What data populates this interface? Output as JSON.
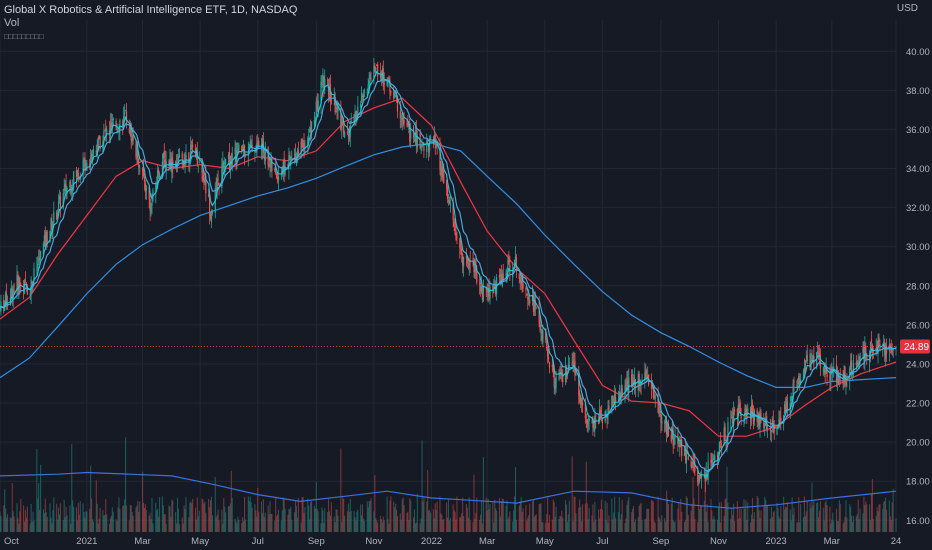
{
  "header": {
    "title": "Global X Robotics & Artificial Intelligence ETF, 1D, NASDAQ",
    "indicator": "Vol",
    "placeholder": "□□□□□□□□□"
  },
  "currency": "USD",
  "colors": {
    "background": "#161a25",
    "grid": "#232733",
    "up": "#26a69a",
    "down": "#ef5350",
    "ema_fast": "#26c6da",
    "ema_mid": "#1e88e5",
    "sma_50": "#f23645",
    "sma_200": "#2962ff",
    "volume_ma": "#2962ff",
    "price_tag": "#e0353f"
  },
  "chart_data": {
    "type": "candlestick",
    "title": "Global X Robotics & Artificial Intelligence ETF, 1D, NASDAQ",
    "ylim": [
      15.4,
      41.6
    ],
    "y_ticks": [
      "16.00",
      "18.00",
      "20.00",
      "22.00",
      "24.00",
      "26.00",
      "28.00",
      "30.00",
      "32.00",
      "34.00",
      "36.00",
      "38.00",
      "40.00"
    ],
    "x_ticks": [
      "Oct",
      "2021",
      "Mar",
      "May",
      "Jul",
      "Sep",
      "Nov",
      "2022",
      "Mar",
      "May",
      "Jul",
      "Sep",
      "Nov",
      "2023",
      "Mar",
      "24"
    ],
    "x_range": [
      "2020-10-01",
      "2023-05-08"
    ],
    "last_price": "24.89",
    "price_path": [
      [
        "2020-10-01",
        26.8
      ],
      [
        "2020-10-20",
        28.2
      ],
      [
        "2020-11-01",
        27.8
      ],
      [
        "2020-11-20",
        30.6
      ],
      [
        "2020-12-10",
        33.0
      ],
      [
        "2020-12-31",
        34.3
      ],
      [
        "2021-01-20",
        35.8
      ],
      [
        "2021-02-12",
        36.6
      ],
      [
        "2021-02-26",
        34.2
      ],
      [
        "2021-03-10",
        32.0
      ],
      [
        "2021-03-20",
        34.4
      ],
      [
        "2021-04-10",
        34.3
      ],
      [
        "2021-04-25",
        35.1
      ],
      [
        "2021-05-05",
        33.5
      ],
      [
        "2021-05-12",
        31.8
      ],
      [
        "2021-05-25",
        34.1
      ],
      [
        "2021-06-15",
        35.0
      ],
      [
        "2021-07-05",
        35.2
      ],
      [
        "2021-07-20",
        33.6
      ],
      [
        "2021-08-05",
        34.4
      ],
      [
        "2021-08-25",
        35.8
      ],
      [
        "2021-09-01",
        37.0
      ],
      [
        "2021-09-08",
        38.6
      ],
      [
        "2021-09-20",
        37.3
      ],
      [
        "2021-10-04",
        35.5
      ],
      [
        "2021-10-20",
        37.7
      ],
      [
        "2021-11-03",
        39.2
      ],
      [
        "2021-11-20",
        38.0
      ],
      [
        "2021-12-05",
        36.0
      ],
      [
        "2021-12-20",
        35.2
      ],
      [
        "2022-01-04",
        35.3
      ],
      [
        "2022-01-20",
        32.1
      ],
      [
        "2022-02-01",
        29.5
      ],
      [
        "2022-02-14",
        29.2
      ],
      [
        "2022-02-24",
        27.6
      ],
      [
        "2022-03-10",
        28.0
      ],
      [
        "2022-03-29",
        29.3
      ],
      [
        "2022-04-20",
        27.0
      ],
      [
        "2022-05-12",
        23.0
      ],
      [
        "2022-05-31",
        23.8
      ],
      [
        "2022-06-16",
        20.8
      ],
      [
        "2022-07-05",
        21.5
      ],
      [
        "2022-07-20",
        22.6
      ],
      [
        "2022-08-16",
        23.5
      ],
      [
        "2022-09-01",
        21.3
      ],
      [
        "2022-09-13",
        20.3
      ],
      [
        "2022-09-30",
        19.0
      ],
      [
        "2022-10-13",
        18.0
      ],
      [
        "2022-10-31",
        19.4
      ],
      [
        "2022-11-15",
        21.3
      ],
      [
        "2022-12-01",
        21.7
      ],
      [
        "2022-12-20",
        20.8
      ],
      [
        "2023-01-05",
        21.0
      ],
      [
        "2023-01-20",
        22.8
      ],
      [
        "2023-02-02",
        24.2
      ],
      [
        "2023-02-15",
        24.3
      ],
      [
        "2023-03-01",
        23.4
      ],
      [
        "2023-03-13",
        23.3
      ],
      [
        "2023-03-31",
        24.3
      ],
      [
        "2023-04-14",
        24.9
      ],
      [
        "2023-05-08",
        24.89
      ]
    ],
    "sma50_path": [
      [
        "2020-10-01",
        26.3
      ],
      [
        "2020-11-01",
        27.4
      ],
      [
        "2020-12-01",
        29.6
      ],
      [
        "2021-01-01",
        31.6
      ],
      [
        "2021-02-01",
        33.6
      ],
      [
        "2021-03-01",
        34.4
      ],
      [
        "2021-04-01",
        34.0
      ],
      [
        "2021-05-01",
        34.2
      ],
      [
        "2021-06-01",
        34.0
      ],
      [
        "2021-07-01",
        34.6
      ],
      [
        "2021-08-01",
        34.4
      ],
      [
        "2021-09-01",
        34.9
      ],
      [
        "2021-10-01",
        36.4
      ],
      [
        "2021-11-01",
        37.1
      ],
      [
        "2021-12-01",
        37.6
      ],
      [
        "2022-01-01",
        36.2
      ],
      [
        "2022-02-01",
        33.3
      ],
      [
        "2022-03-01",
        30.8
      ],
      [
        "2022-04-01",
        28.9
      ],
      [
        "2022-05-01",
        27.6
      ],
      [
        "2022-06-01",
        25.2
      ],
      [
        "2022-07-01",
        22.9
      ],
      [
        "2022-08-01",
        22.1
      ],
      [
        "2022-09-01",
        22.0
      ],
      [
        "2022-10-01",
        21.6
      ],
      [
        "2022-11-01",
        20.3
      ],
      [
        "2022-12-01",
        20.3
      ],
      [
        "2023-01-01",
        20.8
      ],
      [
        "2023-02-01",
        21.9
      ],
      [
        "2023-03-01",
        22.8
      ],
      [
        "2023-04-01",
        23.5
      ],
      [
        "2023-05-08",
        24.1
      ]
    ],
    "sma200_path": [
      [
        "2020-10-01",
        23.3
      ],
      [
        "2020-11-01",
        24.3
      ],
      [
        "2020-12-01",
        25.9
      ],
      [
        "2021-01-01",
        27.6
      ],
      [
        "2021-02-01",
        29.1
      ],
      [
        "2021-03-01",
        30.1
      ],
      [
        "2021-04-01",
        30.9
      ],
      [
        "2021-05-01",
        31.6
      ],
      [
        "2021-06-01",
        32.1
      ],
      [
        "2021-07-01",
        32.6
      ],
      [
        "2021-08-01",
        33.0
      ],
      [
        "2021-09-01",
        33.5
      ],
      [
        "2021-10-01",
        34.1
      ],
      [
        "2021-11-01",
        34.7
      ],
      [
        "2021-12-01",
        35.1
      ],
      [
        "2022-01-01",
        35.3
      ],
      [
        "2022-02-01",
        34.9
      ],
      [
        "2022-03-01",
        33.6
      ],
      [
        "2022-04-01",
        32.2
      ],
      [
        "2022-05-01",
        30.6
      ],
      [
        "2022-06-01",
        29.1
      ],
      [
        "2022-07-01",
        27.7
      ],
      [
        "2022-08-01",
        26.5
      ],
      [
        "2022-09-01",
        25.6
      ],
      [
        "2022-10-01",
        24.9
      ],
      [
        "2022-11-01",
        24.1
      ],
      [
        "2022-12-01",
        23.4
      ],
      [
        "2023-01-01",
        22.8
      ],
      [
        "2023-02-01",
        22.8
      ],
      [
        "2023-03-01",
        23.1
      ],
      [
        "2023-04-01",
        23.2
      ],
      [
        "2023-05-08",
        23.3
      ]
    ],
    "volume_ma_path": [
      [
        "2020-10-01",
        0.33
      ],
      [
        "2020-12-01",
        0.34
      ],
      [
        "2021-01-01",
        0.35
      ],
      [
        "2021-02-15",
        0.34
      ],
      [
        "2021-04-01",
        0.33
      ],
      [
        "2021-05-15",
        0.28
      ],
      [
        "2021-07-01",
        0.22
      ],
      [
        "2021-08-15",
        0.18
      ],
      [
        "2021-10-01",
        0.21
      ],
      [
        "2021-11-15",
        0.24
      ],
      [
        "2022-01-01",
        0.2
      ],
      [
        "2022-02-01",
        0.19
      ],
      [
        "2022-04-01",
        0.17
      ],
      [
        "2022-06-01",
        0.24
      ],
      [
        "2022-08-01",
        0.23
      ],
      [
        "2022-10-01",
        0.16
      ],
      [
        "2022-11-15",
        0.14
      ],
      [
        "2023-01-01",
        0.16
      ],
      [
        "2023-03-01",
        0.2
      ],
      [
        "2023-05-08",
        0.24
      ]
    ]
  }
}
